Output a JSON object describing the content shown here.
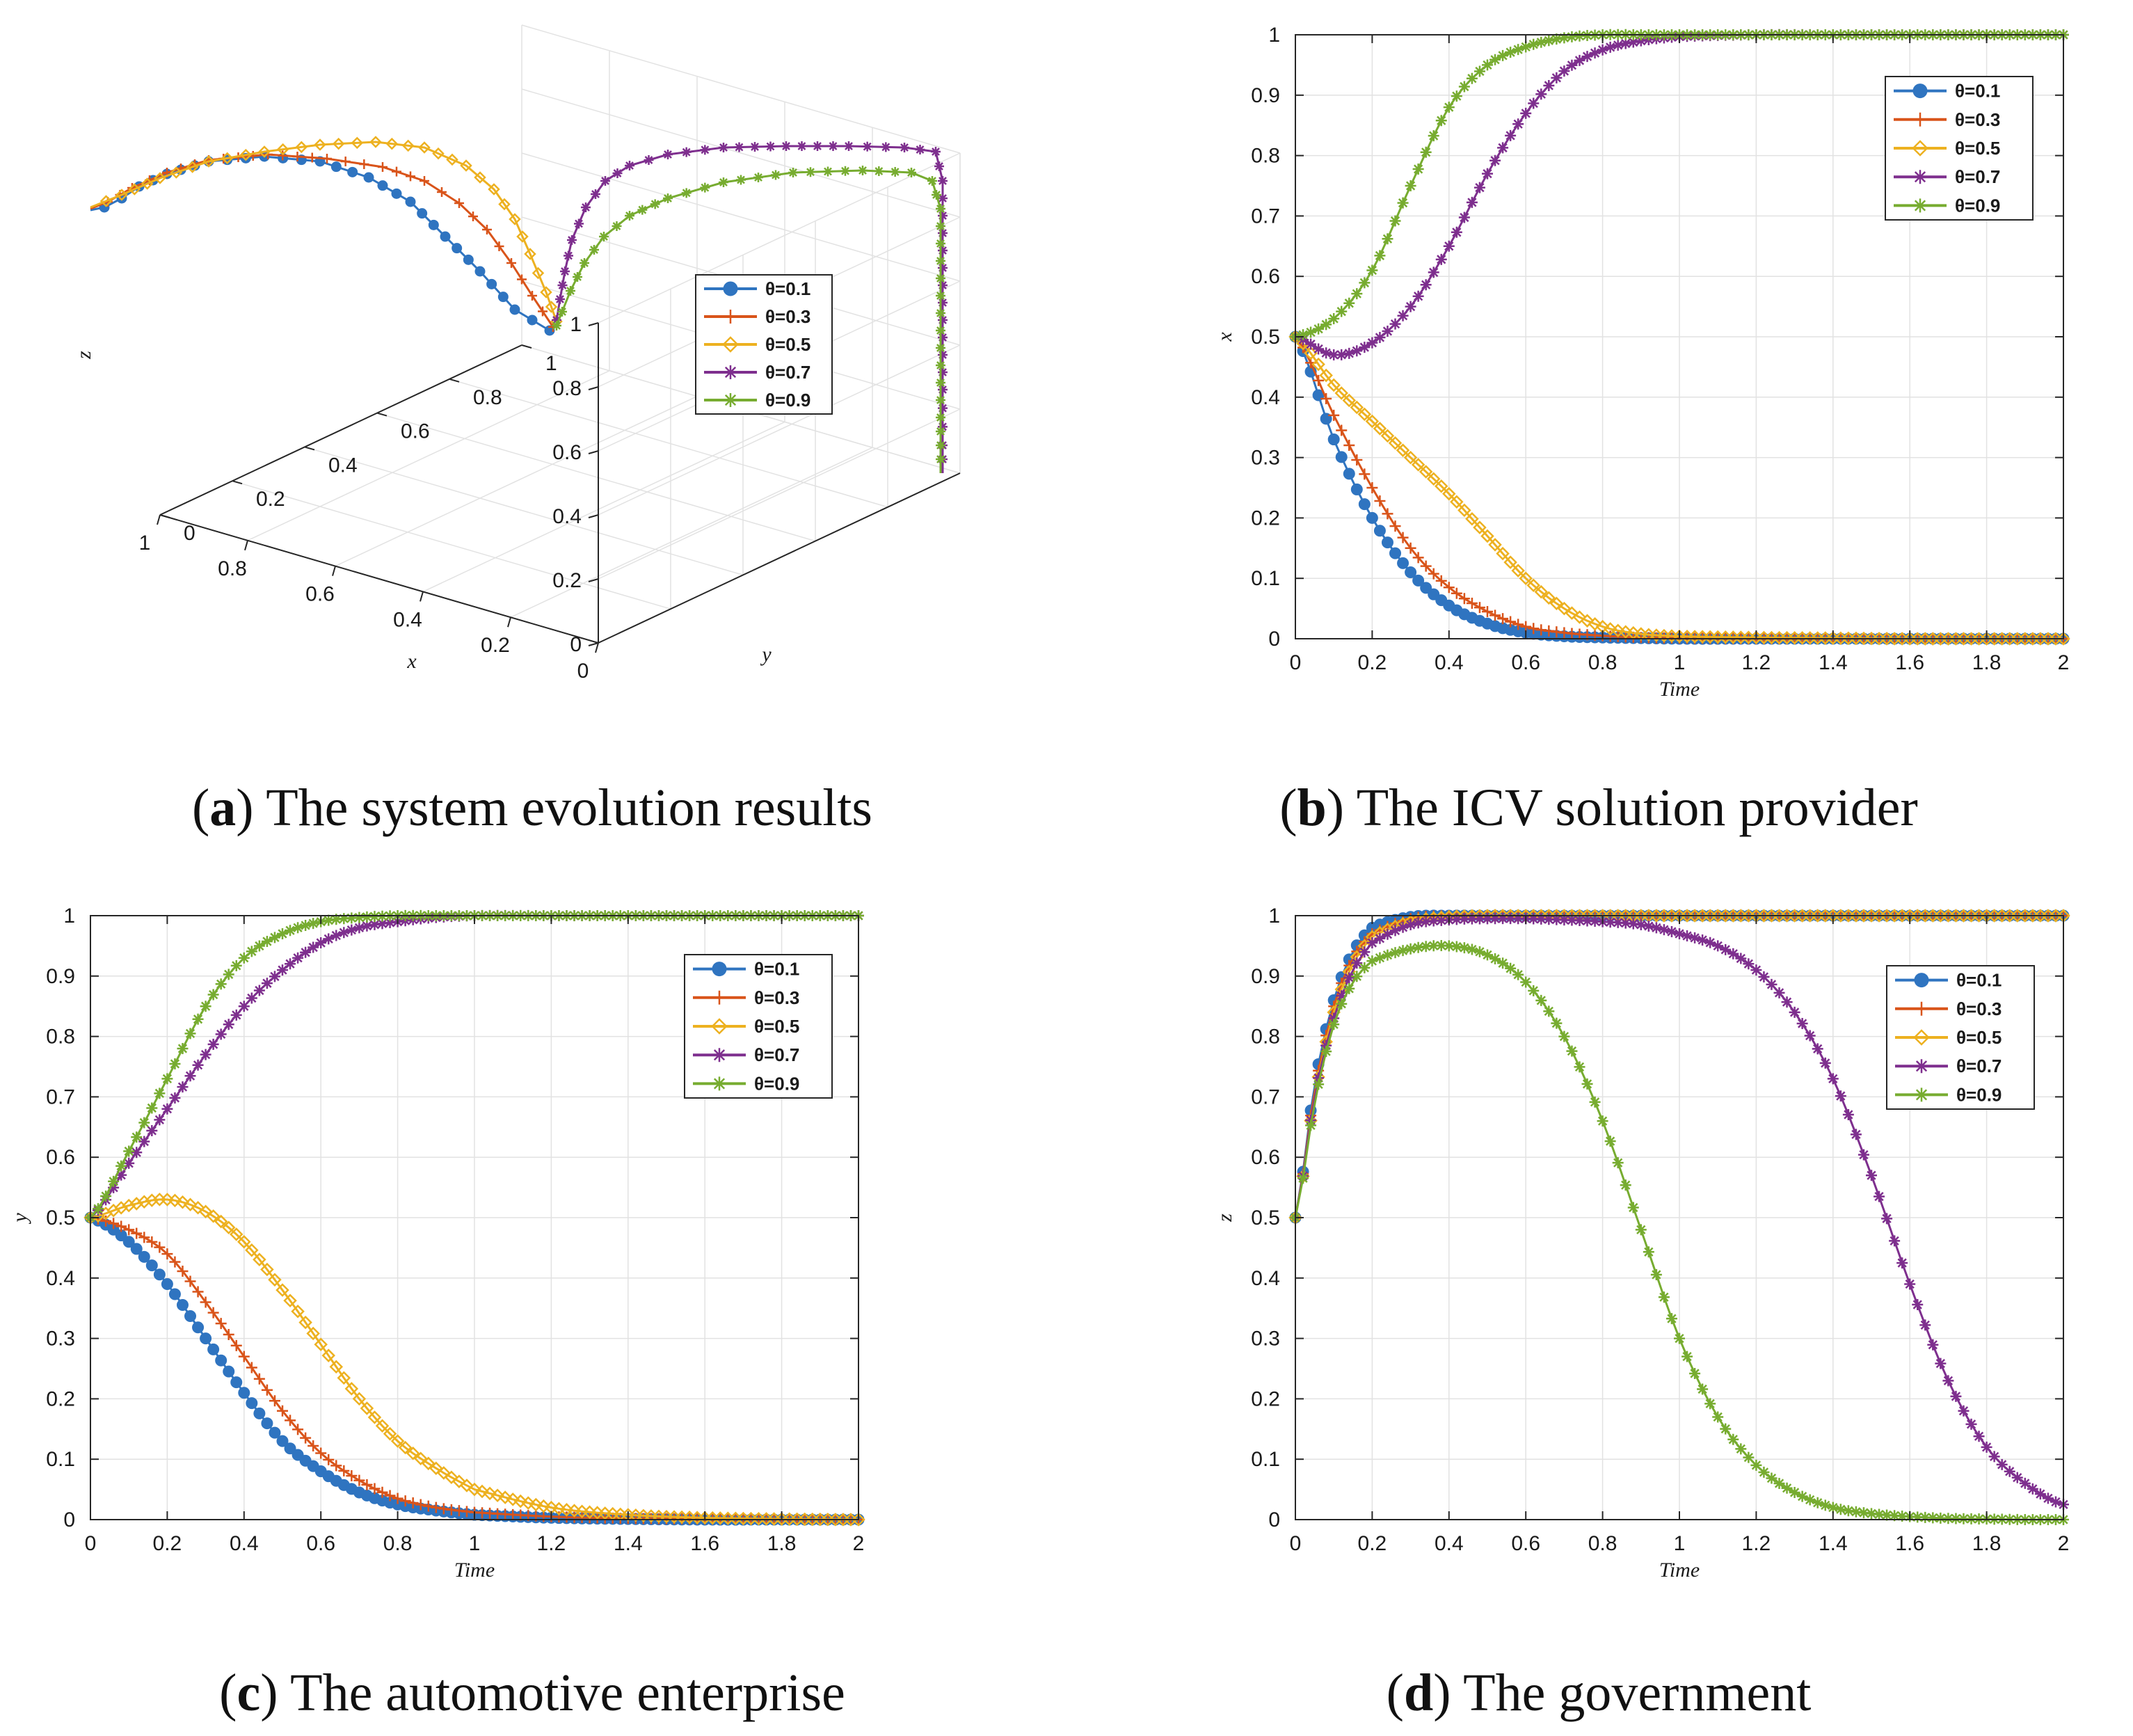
{
  "colors": {
    "theta01": "#2f74c0",
    "theta03": "#d9541a",
    "theta05": "#edb120",
    "theta07": "#7e2f8e",
    "theta09": "#77ac30",
    "grid": "#e2e2e2",
    "axis": "#262626"
  },
  "legend": [
    "θ=0.1",
    "θ=0.3",
    "θ=0.5",
    "θ=0.7",
    "θ=0.9"
  ],
  "captions": {
    "a": {
      "letter": "a",
      "text": "The system evolution results"
    },
    "b": {
      "letter": "b",
      "text": "The ICV solution provider"
    },
    "c": {
      "letter": "c",
      "text": "The automotive enterprise"
    },
    "d": {
      "letter": "d",
      "text": "The government"
    }
  },
  "chart_data": [
    {
      "id": "a",
      "type": "line3d",
      "title": "The system evolution results",
      "xlabel": "x",
      "ylabel": "y",
      "zlabel": "z",
      "xlim": [
        0,
        1
      ],
      "ylim": [
        0,
        1
      ],
      "zlim": [
        0,
        1
      ],
      "xticks": [
        "0",
        "0.2",
        "0.4",
        "0.6",
        "0.8",
        "1"
      ],
      "yticks": [
        "0",
        "0.2",
        "0.4",
        "0.6",
        "0.8",
        "1"
      ],
      "zticks": [
        "0",
        "0.2",
        "0.4",
        "0.6",
        "0.8",
        "1"
      ],
      "legend_position": "right",
      "note": "Trajectories start at (x, y, z) = (0.5, 0.5, 0.5); θ=0.1/0.3/0.5 converge to (0, 0, 1); θ=0.7/0.9 converge to (1, 1, 0)"
    },
    {
      "id": "b",
      "type": "line",
      "title": "The ICV solution provider",
      "xlabel": "Time",
      "ylabel": "x",
      "xlim": [
        0,
        2
      ],
      "ylim": [
        0,
        1
      ],
      "xticks": [
        "0",
        "0.2",
        "0.4",
        "0.6",
        "0.8",
        "1",
        "1.2",
        "1.4",
        "1.6",
        "1.8",
        "2"
      ],
      "yticks": [
        "0",
        "0.1",
        "0.2",
        "0.3",
        "0.4",
        "0.5",
        "0.6",
        "0.7",
        "0.8",
        "0.9",
        "1"
      ],
      "legend_position": "top-right",
      "x": [
        0,
        0.1,
        0.2,
        0.3,
        0.4,
        0.5,
        0.6,
        0.7,
        0.8,
        0.9,
        1.0,
        1.2,
        1.4,
        1.6,
        1.8,
        2.0
      ],
      "series": [
        {
          "name": "θ=0.1",
          "values": [
            0.5,
            0.33,
            0.2,
            0.11,
            0.055,
            0.025,
            0.01,
            0.004,
            0.002,
            0.001,
            0,
            0,
            0,
            0,
            0,
            0
          ]
        },
        {
          "name": "θ=0.3",
          "values": [
            0.5,
            0.37,
            0.25,
            0.15,
            0.085,
            0.045,
            0.02,
            0.01,
            0.005,
            0.002,
            0.001,
            0,
            0,
            0,
            0,
            0
          ]
        },
        {
          "name": "θ=0.5",
          "values": [
            0.5,
            0.42,
            0.36,
            0.3,
            0.24,
            0.17,
            0.1,
            0.05,
            0.02,
            0.008,
            0.004,
            0.002,
            0.001,
            0,
            0,
            0
          ]
        },
        {
          "name": "θ=0.7",
          "values": [
            0.5,
            0.47,
            0.49,
            0.55,
            0.65,
            0.77,
            0.87,
            0.94,
            0.975,
            0.99,
            0.997,
            1,
            1,
            1,
            1,
            1
          ]
        },
        {
          "name": "θ=0.9",
          "values": [
            0.5,
            0.53,
            0.61,
            0.75,
            0.88,
            0.95,
            0.98,
            0.995,
            1,
            1,
            1,
            1,
            1,
            1,
            1,
            1
          ]
        }
      ]
    },
    {
      "id": "c",
      "type": "line",
      "title": "The automotive enterprise",
      "xlabel": "Time",
      "ylabel": "y",
      "xlim": [
        0,
        2
      ],
      "ylim": [
        0,
        1
      ],
      "xticks": [
        "0",
        "0.2",
        "0.4",
        "0.6",
        "0.8",
        "1",
        "1.2",
        "1.4",
        "1.6",
        "1.8",
        "2"
      ],
      "yticks": [
        "0",
        "0.1",
        "0.2",
        "0.3",
        "0.4",
        "0.5",
        "0.6",
        "0.7",
        "0.8",
        "0.9",
        "1"
      ],
      "legend_position": "top-right",
      "x": [
        0,
        0.1,
        0.2,
        0.3,
        0.4,
        0.5,
        0.6,
        0.7,
        0.8,
        0.9,
        1.0,
        1.2,
        1.4,
        1.6,
        1.8,
        2.0
      ],
      "series": [
        {
          "name": "θ=0.1",
          "values": [
            0.5,
            0.46,
            0.39,
            0.3,
            0.21,
            0.13,
            0.08,
            0.045,
            0.025,
            0.015,
            0.008,
            0.003,
            0.001,
            0,
            0,
            0
          ]
        },
        {
          "name": "θ=0.3",
          "values": [
            0.5,
            0.48,
            0.44,
            0.36,
            0.27,
            0.18,
            0.11,
            0.065,
            0.035,
            0.02,
            0.012,
            0.005,
            0.002,
            0.001,
            0,
            0
          ]
        },
        {
          "name": "θ=0.5",
          "values": [
            0.5,
            0.52,
            0.53,
            0.51,
            0.46,
            0.38,
            0.29,
            0.2,
            0.13,
            0.085,
            0.05,
            0.02,
            0.008,
            0.003,
            0.001,
            0
          ]
        },
        {
          "name": "θ=0.7",
          "values": [
            0.5,
            0.59,
            0.68,
            0.77,
            0.85,
            0.91,
            0.955,
            0.98,
            0.99,
            0.997,
            1,
            1,
            1,
            1,
            1,
            1
          ]
        },
        {
          "name": "θ=0.9",
          "values": [
            0.5,
            0.61,
            0.73,
            0.85,
            0.93,
            0.97,
            0.99,
            0.997,
            1,
            1,
            1,
            1,
            1,
            1,
            1,
            1
          ]
        }
      ]
    },
    {
      "id": "d",
      "type": "line",
      "title": "The government",
      "xlabel": "Time",
      "ylabel": "z",
      "xlim": [
        0,
        2
      ],
      "ylim": [
        0,
        1
      ],
      "xticks": [
        "0",
        "0.2",
        "0.4",
        "0.6",
        "0.8",
        "1",
        "1.2",
        "1.4",
        "1.6",
        "1.8",
        "2"
      ],
      "yticks": [
        "0",
        "0.1",
        "0.2",
        "0.3",
        "0.4",
        "0.5",
        "0.6",
        "0.7",
        "0.8",
        "0.9",
        "1"
      ],
      "legend_position": "top-right",
      "x": [
        0,
        0.05,
        0.1,
        0.15,
        0.2,
        0.3,
        0.4,
        0.5,
        0.6,
        0.7,
        0.8,
        0.9,
        1.0,
        1.1,
        1.2,
        1.3,
        1.4,
        1.5,
        1.6,
        1.7,
        1.8,
        1.9,
        2.0
      ],
      "series": [
        {
          "name": "θ=0.1",
          "values": [
            0.5,
            0.72,
            0.86,
            0.94,
            0.98,
            0.998,
            1,
            1,
            1,
            1,
            1,
            1,
            1,
            1,
            1,
            1,
            1,
            1,
            1,
            1,
            1,
            1,
            1
          ]
        },
        {
          "name": "θ=0.3",
          "values": [
            0.5,
            0.71,
            0.85,
            0.93,
            0.97,
            0.995,
            1,
            1,
            1,
            1,
            1,
            1,
            1,
            1,
            1,
            1,
            1,
            1,
            1,
            1,
            1,
            1,
            1
          ]
        },
        {
          "name": "θ=0.5",
          "values": [
            0.5,
            0.7,
            0.84,
            0.92,
            0.965,
            0.99,
            0.998,
            1,
            1,
            1,
            1,
            1,
            1,
            1,
            1,
            1,
            1,
            1,
            1,
            1,
            1,
            1,
            1
          ]
        },
        {
          "name": "θ=0.7",
          "values": [
            0.5,
            0.7,
            0.83,
            0.91,
            0.955,
            0.985,
            0.993,
            0.995,
            0.995,
            0.993,
            0.99,
            0.985,
            0.97,
            0.95,
            0.91,
            0.84,
            0.73,
            0.57,
            0.39,
            0.23,
            0.12,
            0.06,
            0.025
          ]
        },
        {
          "name": "θ=0.9",
          "values": [
            0.5,
            0.69,
            0.82,
            0.89,
            0.925,
            0.945,
            0.95,
            0.935,
            0.89,
            0.8,
            0.66,
            0.48,
            0.3,
            0.17,
            0.09,
            0.045,
            0.02,
            0.01,
            0.005,
            0.002,
            0.001,
            0,
            0
          ]
        }
      ]
    }
  ]
}
